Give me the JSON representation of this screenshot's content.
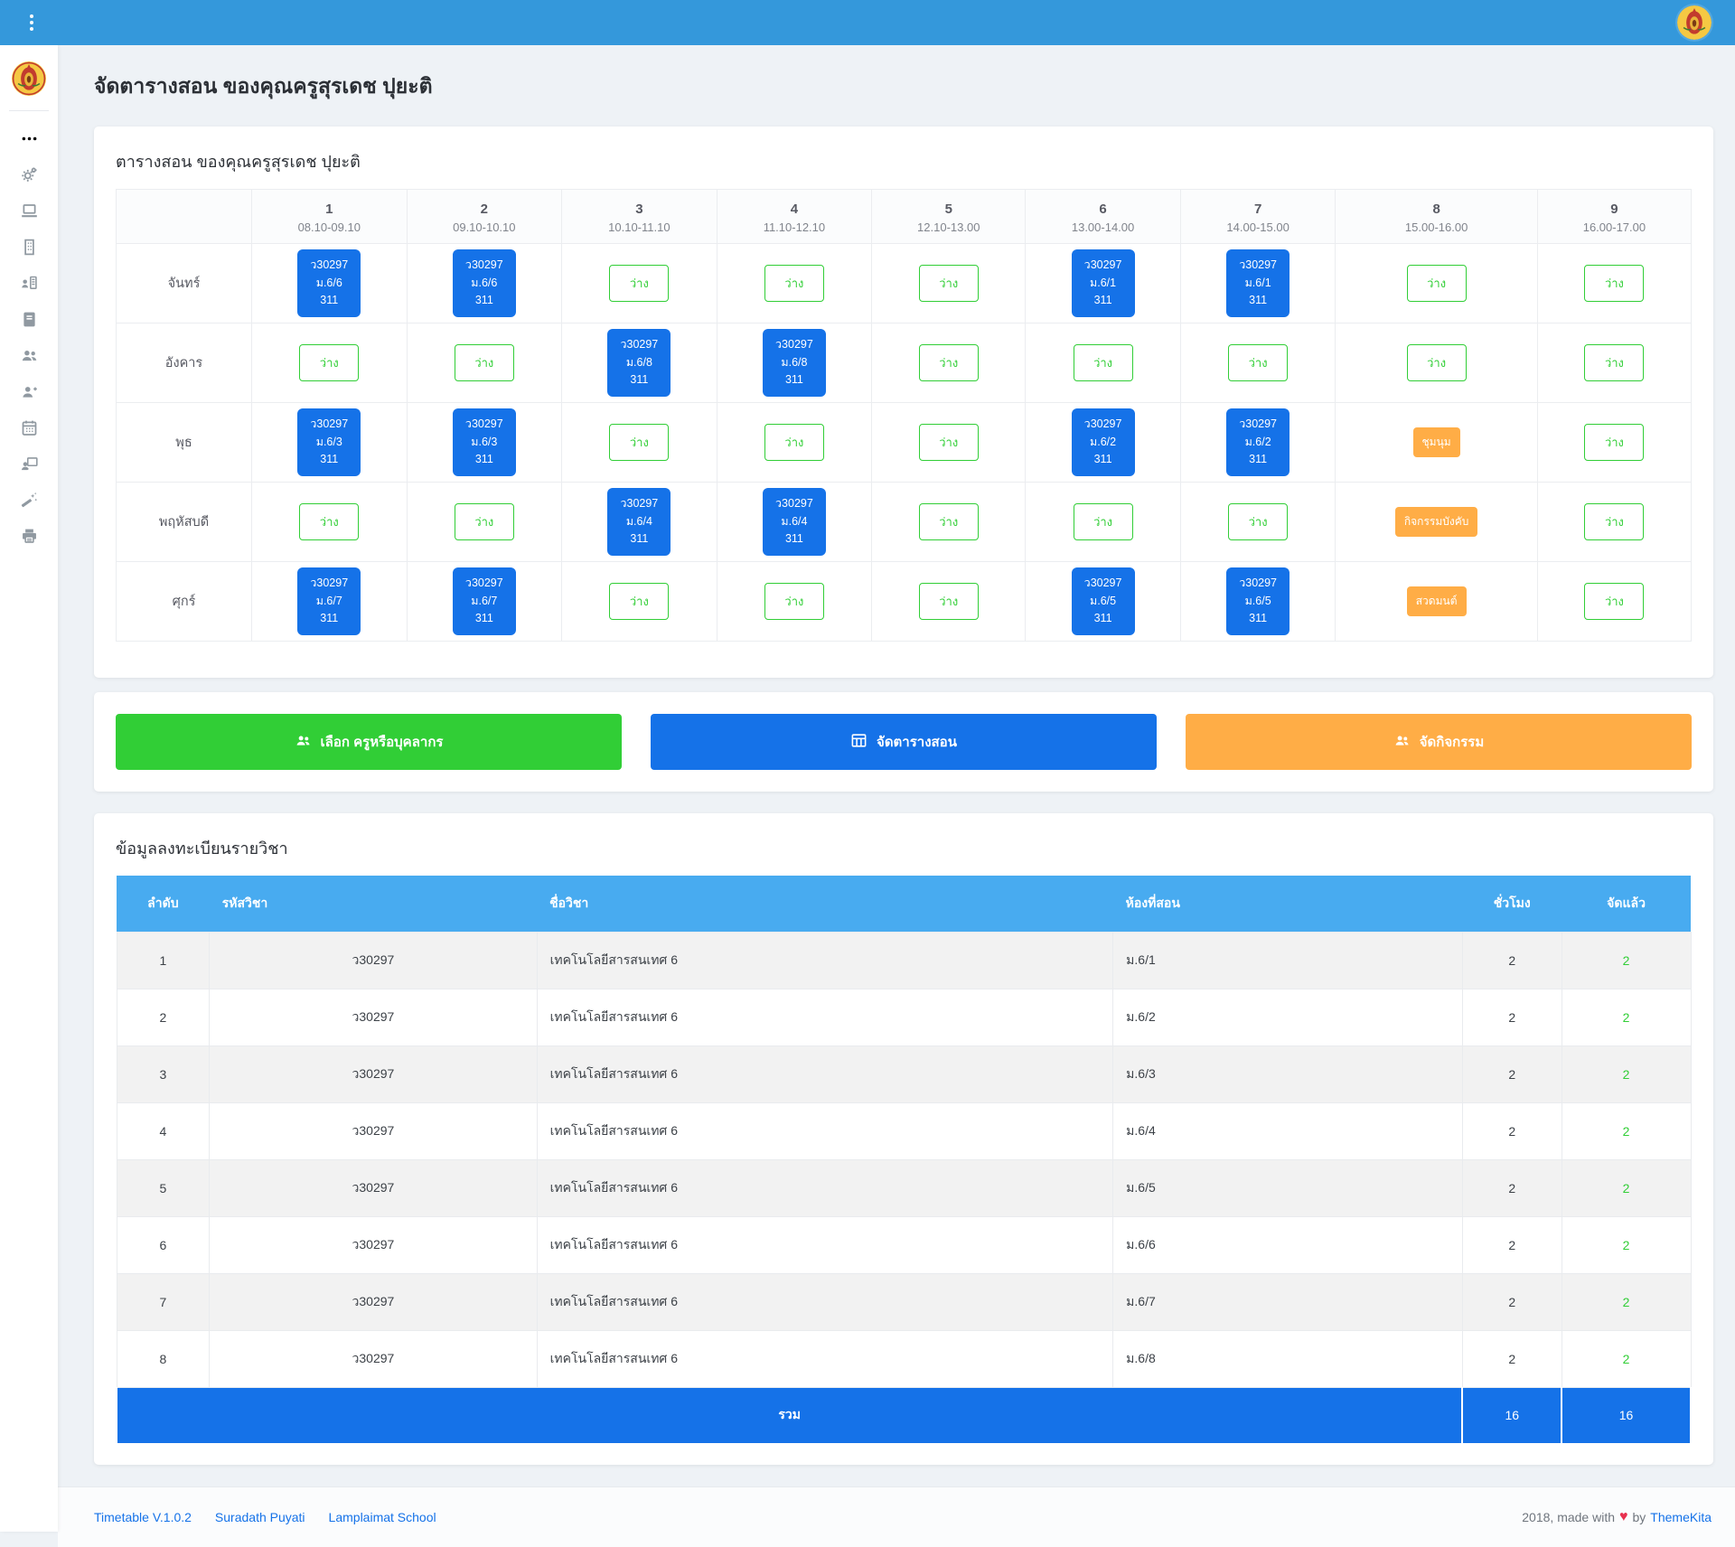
{
  "page_title": "จัดตารางสอน ของคุณครูสุรเดช ปุยะติ",
  "colors": {
    "navbar": "#3498db",
    "primary": "#1572e8",
    "success": "#31ce36",
    "warning": "#ffad46",
    "info": "#48abf0"
  },
  "sidebar": {
    "icons": [
      "ellipsis-icon",
      "settings-gears-icon",
      "laptop-icon",
      "building-icon",
      "org-chart-icon",
      "book-icon",
      "users-icon",
      "user-plus-icon",
      "calendar-icon",
      "teacher-board-icon",
      "magic-wand-icon",
      "printer-icon"
    ]
  },
  "timetable": {
    "title": "ตารางสอน ของคุณครูสุรเดช ปุยะติ",
    "free_label": "ว่าง",
    "periods": [
      {
        "no": "1",
        "time": "08.10-09.10"
      },
      {
        "no": "2",
        "time": "09.10-10.10"
      },
      {
        "no": "3",
        "time": "10.10-11.10"
      },
      {
        "no": "4",
        "time": "11.10-12.10"
      },
      {
        "no": "5",
        "time": "12.10-13.00"
      },
      {
        "no": "6",
        "time": "13.00-14.00"
      },
      {
        "no": "7",
        "time": "14.00-15.00"
      },
      {
        "no": "8",
        "time": "15.00-16.00"
      },
      {
        "no": "9",
        "time": "16.00-17.00"
      }
    ],
    "days": [
      {
        "name": "จันทร์",
        "slots": [
          {
            "type": "subject",
            "code": "ว30297",
            "class": "ม.6/6",
            "room": "311"
          },
          {
            "type": "subject",
            "code": "ว30297",
            "class": "ม.6/6",
            "room": "311"
          },
          {
            "type": "free"
          },
          {
            "type": "free"
          },
          {
            "type": "free"
          },
          {
            "type": "subject",
            "code": "ว30297",
            "class": "ม.6/1",
            "room": "311"
          },
          {
            "type": "subject",
            "code": "ว30297",
            "class": "ม.6/1",
            "room": "311"
          },
          {
            "type": "free"
          },
          {
            "type": "free"
          }
        ]
      },
      {
        "name": "อังคาร",
        "slots": [
          {
            "type": "free"
          },
          {
            "type": "free"
          },
          {
            "type": "subject",
            "code": "ว30297",
            "class": "ม.6/8",
            "room": "311"
          },
          {
            "type": "subject",
            "code": "ว30297",
            "class": "ม.6/8",
            "room": "311"
          },
          {
            "type": "free"
          },
          {
            "type": "free"
          },
          {
            "type": "free"
          },
          {
            "type": "free"
          },
          {
            "type": "free"
          }
        ]
      },
      {
        "name": "พุธ",
        "slots": [
          {
            "type": "subject",
            "code": "ว30297",
            "class": "ม.6/3",
            "room": "311"
          },
          {
            "type": "subject",
            "code": "ว30297",
            "class": "ม.6/3",
            "room": "311"
          },
          {
            "type": "free"
          },
          {
            "type": "free"
          },
          {
            "type": "free"
          },
          {
            "type": "subject",
            "code": "ว30297",
            "class": "ม.6/2",
            "room": "311"
          },
          {
            "type": "subject",
            "code": "ว30297",
            "class": "ม.6/2",
            "room": "311"
          },
          {
            "type": "activity",
            "label": "ชุมนุม"
          },
          {
            "type": "free"
          }
        ]
      },
      {
        "name": "พฤหัสบดี",
        "slots": [
          {
            "type": "free"
          },
          {
            "type": "free"
          },
          {
            "type": "subject",
            "code": "ว30297",
            "class": "ม.6/4",
            "room": "311"
          },
          {
            "type": "subject",
            "code": "ว30297",
            "class": "ม.6/4",
            "room": "311"
          },
          {
            "type": "free"
          },
          {
            "type": "free"
          },
          {
            "type": "free"
          },
          {
            "type": "activity",
            "label": "กิจกรรมบังคับ"
          },
          {
            "type": "free"
          }
        ]
      },
      {
        "name": "ศุกร์",
        "slots": [
          {
            "type": "subject",
            "code": "ว30297",
            "class": "ม.6/7",
            "room": "311"
          },
          {
            "type": "subject",
            "code": "ว30297",
            "class": "ม.6/7",
            "room": "311"
          },
          {
            "type": "free"
          },
          {
            "type": "free"
          },
          {
            "type": "free"
          },
          {
            "type": "subject",
            "code": "ว30297",
            "class": "ม.6/5",
            "room": "311"
          },
          {
            "type": "subject",
            "code": "ว30297",
            "class": "ม.6/5",
            "room": "311"
          },
          {
            "type": "activity",
            "label": "สวดมนต์"
          },
          {
            "type": "free"
          }
        ]
      }
    ]
  },
  "actions": [
    {
      "label": "เลือก ครูหรือบุคลากร",
      "icon": "users-icon",
      "color": "#31ce36"
    },
    {
      "label": "จัดตารางสอน",
      "icon": "table-icon",
      "color": "#1572e8"
    },
    {
      "label": "จัดกิจกรรม",
      "icon": "user-friends-icon",
      "color": "#ffad46"
    }
  ],
  "register": {
    "title": "ข้อมูลลงทะเบียนรายวิชา",
    "columns": [
      "ลำดับ",
      "รหัสวิชา",
      "ชื่อวิชา",
      "ห้องที่สอน",
      "ชั่วโมง",
      "จัดแล้ว"
    ],
    "rows": [
      [
        "1",
        "ว30297",
        "เทคโนโลยีสารสนเทศ 6",
        "ม.6/1",
        "2",
        "2"
      ],
      [
        "2",
        "ว30297",
        "เทคโนโลยีสารสนเทศ 6",
        "ม.6/2",
        "2",
        "2"
      ],
      [
        "3",
        "ว30297",
        "เทคโนโลยีสารสนเทศ 6",
        "ม.6/3",
        "2",
        "2"
      ],
      [
        "4",
        "ว30297",
        "เทคโนโลยีสารสนเทศ 6",
        "ม.6/4",
        "2",
        "2"
      ],
      [
        "5",
        "ว30297",
        "เทคโนโลยีสารสนเทศ 6",
        "ม.6/5",
        "2",
        "2"
      ],
      [
        "6",
        "ว30297",
        "เทคโนโลยีสารสนเทศ 6",
        "ม.6/6",
        "2",
        "2"
      ],
      [
        "7",
        "ว30297",
        "เทคโนโลยีสารสนเทศ 6",
        "ม.6/7",
        "2",
        "2"
      ],
      [
        "8",
        "ว30297",
        "เทคโนโลยีสารสนเทศ 6",
        "ม.6/8",
        "2",
        "2"
      ]
    ],
    "total_label": "รวม",
    "total_hours": "16",
    "total_done": "16"
  },
  "footer": {
    "links": [
      "Timetable V.1.0.2",
      "Suradath Puyati",
      "Lamplaimat School"
    ],
    "copyright": "2018, made with",
    "heart": "♥",
    "by": "by",
    "brand": "ThemeKita"
  }
}
